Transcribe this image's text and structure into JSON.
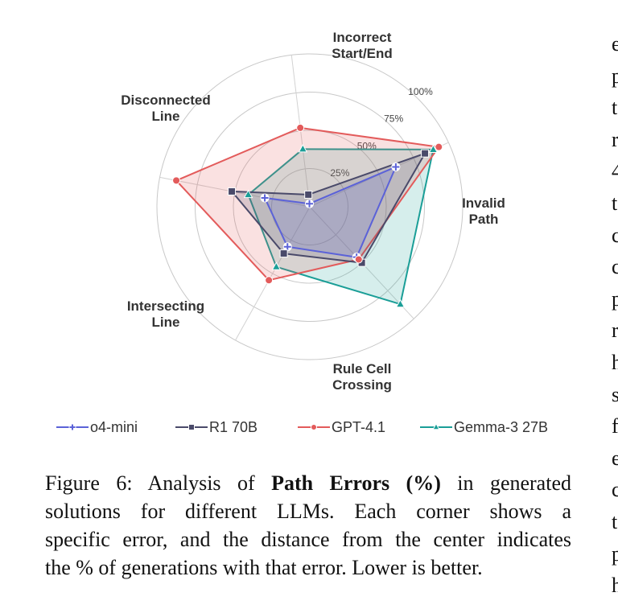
{
  "chart_data": {
    "type": "radar",
    "axes": [
      "Incorrect\nStart/End",
      "Invalid\nPath",
      "Rule Cell\nCrossing",
      "Intersecting\nLine",
      "Disconnected\nLine"
    ],
    "rlim": [
      0,
      100
    ],
    "rticks": [
      25,
      50,
      75,
      100
    ],
    "rtick_labels": [
      "25%",
      "50%",
      "75%",
      "100%"
    ],
    "grid": true,
    "legend_position": "bottom",
    "series": [
      {
        "name": "o4-mini",
        "color": "#5b62d8",
        "marker": "plus",
        "values": [
          2,
          62,
          45,
          30,
          30
        ]
      },
      {
        "name": "R1 70B",
        "color": "#4a4a6a",
        "marker": "square",
        "values": [
          8,
          83,
          50,
          35,
          52
        ]
      },
      {
        "name": "GPT-4.1",
        "color": "#e35b5b",
        "marker": "circle",
        "values": [
          52,
          93,
          47,
          55,
          89
        ]
      },
      {
        "name": "Gemma-3 27B",
        "color": "#1a9e97",
        "marker": "triangle",
        "values": [
          38,
          89,
          87,
          45,
          41
        ]
      }
    ]
  },
  "caption": {
    "prefix": "Figure 6: Analysis of ",
    "bold": "Path Errors (%)",
    "line1_suffix": " in generated",
    "line2": "solutions for different LLMs.  Each corner shows a",
    "line3": "specific error, and the distance from the center indicates",
    "line4": "the % of generations with that error. Lower is better."
  },
  "side_text": [
    "e",
    "p",
    "t",
    "r",
    "4",
    "t",
    "c",
    "c",
    "p",
    "r",
    "h",
    "s",
    "f",
    "e",
    "c",
    "t",
    "p",
    "h"
  ]
}
